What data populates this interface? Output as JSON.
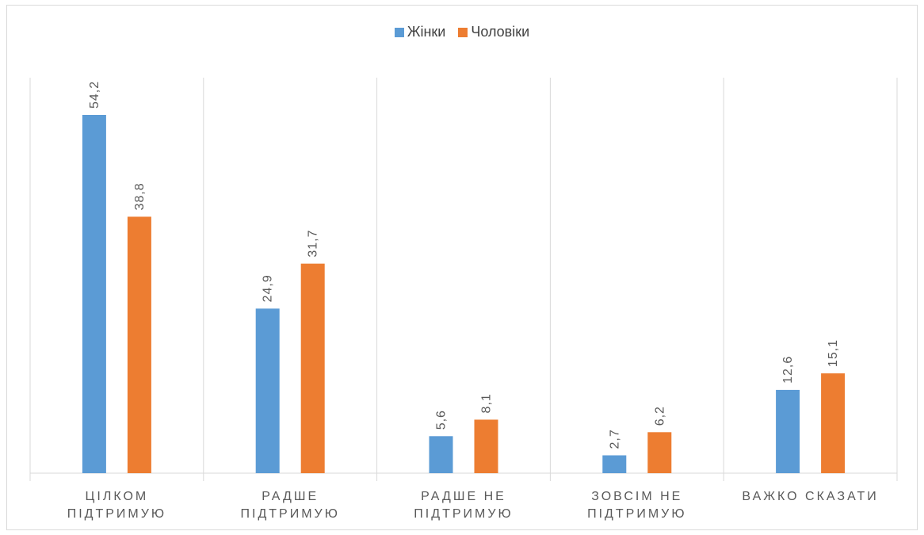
{
  "chart_data": {
    "type": "bar",
    "categories": [
      [
        "ЦІЛКОМ",
        "ПІДТРИМУЮ"
      ],
      [
        "РАДШЕ",
        "ПІДТРИМУЮ"
      ],
      [
        "РАДШЕ НЕ",
        "ПІДТРИМУЮ"
      ],
      [
        "ЗОВСІМ НЕ",
        "ПІДТРИМУЮ"
      ],
      [
        "ВАЖКО СКАЗАТИ"
      ]
    ],
    "series": [
      {
        "name": "Жінки",
        "color": "#5b9bd5",
        "values": [
          54.2,
          24.9,
          5.6,
          2.7,
          12.6
        ],
        "labels": [
          "54,2",
          "24,9",
          "5,6",
          "2,7",
          "12,6"
        ]
      },
      {
        "name": "Чоловіки",
        "color": "#ed7d31",
        "values": [
          38.8,
          31.7,
          8.1,
          6.2,
          15.1
        ],
        "labels": [
          "38,8",
          "31,7",
          "8,1",
          "6,2",
          "15,1"
        ]
      }
    ],
    "ylim": [
      0,
      60
    ],
    "grid": "vertical category separators",
    "legend_position": "top"
  }
}
